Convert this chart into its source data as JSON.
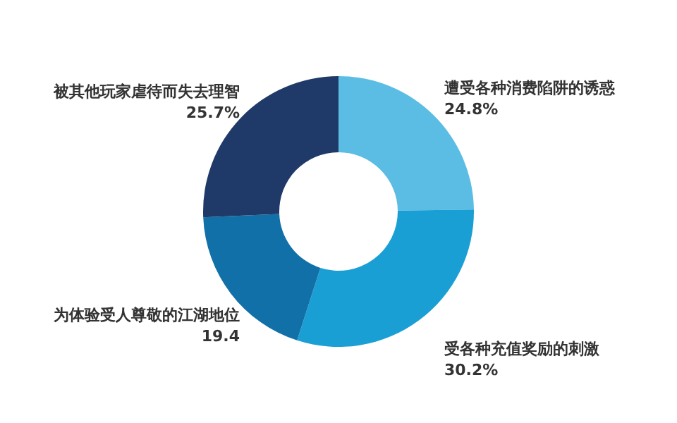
{
  "chart_data": {
    "type": "donut",
    "categories": [
      "遭受各种消费陷阱的诱惑",
      "受各种充值奖励的刺激",
      "为体验受人尊敬的江湖地位",
      "被其他玩家虐待而失去理智"
    ],
    "values": [
      24.8,
      30.2,
      19.4,
      25.7
    ],
    "value_labels": [
      "24.8%",
      "30.2%",
      "19.4",
      "25.7%"
    ],
    "colors": [
      "#5bbde4",
      "#1a9fd4",
      "#1170a8",
      "#1f3a68"
    ]
  }
}
